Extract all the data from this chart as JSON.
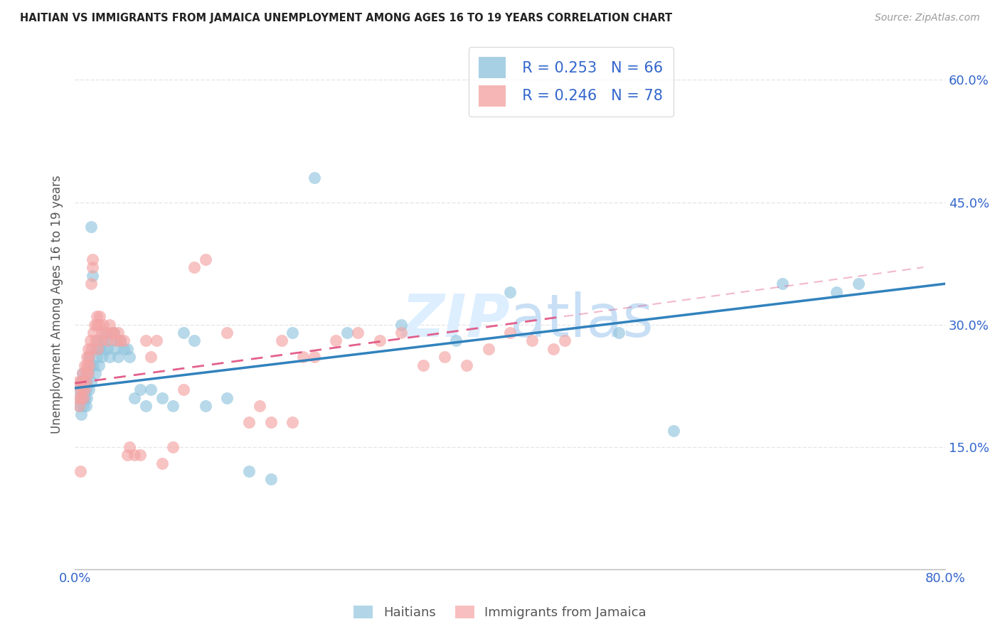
{
  "title": "HAITIAN VS IMMIGRANTS FROM JAMAICA UNEMPLOYMENT AMONG AGES 16 TO 19 YEARS CORRELATION CHART",
  "source": "Source: ZipAtlas.com",
  "ylabel": "Unemployment Among Ages 16 to 19 years",
  "xlim": [
    0,
    0.8
  ],
  "ylim": [
    0.0,
    0.65
  ],
  "legend_labels": [
    "Haitians",
    "Immigrants from Jamaica"
  ],
  "blue_color": "#92c5de",
  "pink_color": "#f4a4a4",
  "blue_line_color": "#3182bd",
  "pink_line_color": "#e05080",
  "watermark_color": "#ddeeff",
  "grid_color": "#e0e0e0",
  "title_color": "#222222",
  "axis_label_color": "#3366cc",
  "blue_x": [
    0.003,
    0.004,
    0.005,
    0.006,
    0.006,
    0.007,
    0.007,
    0.008,
    0.008,
    0.009,
    0.009,
    0.01,
    0.01,
    0.011,
    0.011,
    0.012,
    0.013,
    0.013,
    0.014,
    0.015,
    0.015,
    0.016,
    0.017,
    0.018,
    0.019,
    0.02,
    0.021,
    0.022,
    0.023,
    0.025,
    0.026,
    0.027,
    0.028,
    0.03,
    0.032,
    0.034,
    0.036,
    0.038,
    0.04,
    0.042,
    0.045,
    0.048,
    0.05,
    0.055,
    0.06,
    0.065,
    0.07,
    0.08,
    0.09,
    0.1,
    0.11,
    0.12,
    0.14,
    0.16,
    0.18,
    0.2,
    0.22,
    0.25,
    0.3,
    0.35,
    0.4,
    0.5,
    0.55,
    0.65,
    0.7,
    0.72
  ],
  "blue_y": [
    0.22,
    0.2,
    0.21,
    0.23,
    0.19,
    0.22,
    0.24,
    0.21,
    0.2,
    0.23,
    0.21,
    0.22,
    0.2,
    0.23,
    0.21,
    0.24,
    0.26,
    0.22,
    0.25,
    0.23,
    0.42,
    0.36,
    0.25,
    0.27,
    0.24,
    0.26,
    0.28,
    0.25,
    0.27,
    0.26,
    0.28,
    0.27,
    0.29,
    0.27,
    0.26,
    0.28,
    0.29,
    0.27,
    0.26,
    0.28,
    0.27,
    0.27,
    0.26,
    0.21,
    0.22,
    0.2,
    0.22,
    0.21,
    0.2,
    0.29,
    0.28,
    0.2,
    0.21,
    0.12,
    0.11,
    0.29,
    0.48,
    0.29,
    0.3,
    0.28,
    0.34,
    0.29,
    0.17,
    0.35,
    0.34,
    0.35
  ],
  "pink_x": [
    0.003,
    0.004,
    0.004,
    0.005,
    0.005,
    0.006,
    0.006,
    0.007,
    0.007,
    0.008,
    0.008,
    0.009,
    0.009,
    0.01,
    0.01,
    0.011,
    0.011,
    0.012,
    0.012,
    0.013,
    0.013,
    0.014,
    0.015,
    0.015,
    0.016,
    0.016,
    0.017,
    0.018,
    0.019,
    0.02,
    0.02,
    0.021,
    0.022,
    0.023,
    0.024,
    0.025,
    0.026,
    0.028,
    0.03,
    0.032,
    0.034,
    0.036,
    0.038,
    0.04,
    0.042,
    0.045,
    0.048,
    0.05,
    0.055,
    0.06,
    0.065,
    0.07,
    0.075,
    0.08,
    0.09,
    0.1,
    0.11,
    0.12,
    0.14,
    0.16,
    0.17,
    0.18,
    0.19,
    0.2,
    0.21,
    0.22,
    0.24,
    0.26,
    0.28,
    0.3,
    0.32,
    0.34,
    0.36,
    0.38,
    0.4,
    0.42,
    0.44,
    0.45
  ],
  "pink_y": [
    0.23,
    0.21,
    0.2,
    0.22,
    0.12,
    0.21,
    0.23,
    0.22,
    0.24,
    0.21,
    0.23,
    0.25,
    0.22,
    0.24,
    0.23,
    0.26,
    0.25,
    0.27,
    0.24,
    0.26,
    0.25,
    0.28,
    0.35,
    0.27,
    0.38,
    0.37,
    0.29,
    0.3,
    0.28,
    0.3,
    0.31,
    0.27,
    0.3,
    0.31,
    0.28,
    0.29,
    0.3,
    0.29,
    0.28,
    0.3,
    0.29,
    0.29,
    0.28,
    0.29,
    0.28,
    0.28,
    0.14,
    0.15,
    0.14,
    0.14,
    0.28,
    0.26,
    0.28,
    0.13,
    0.15,
    0.22,
    0.37,
    0.38,
    0.29,
    0.18,
    0.2,
    0.18,
    0.28,
    0.18,
    0.26,
    0.26,
    0.28,
    0.29,
    0.28,
    0.29,
    0.25,
    0.26,
    0.25,
    0.27,
    0.29,
    0.28,
    0.27,
    0.28
  ],
  "blue_line_start_y": 0.222,
  "blue_line_end_y": 0.35,
  "pink_line_start_y": 0.228,
  "pink_line_end_y": 0.31,
  "pink_line_end_x": 0.45
}
